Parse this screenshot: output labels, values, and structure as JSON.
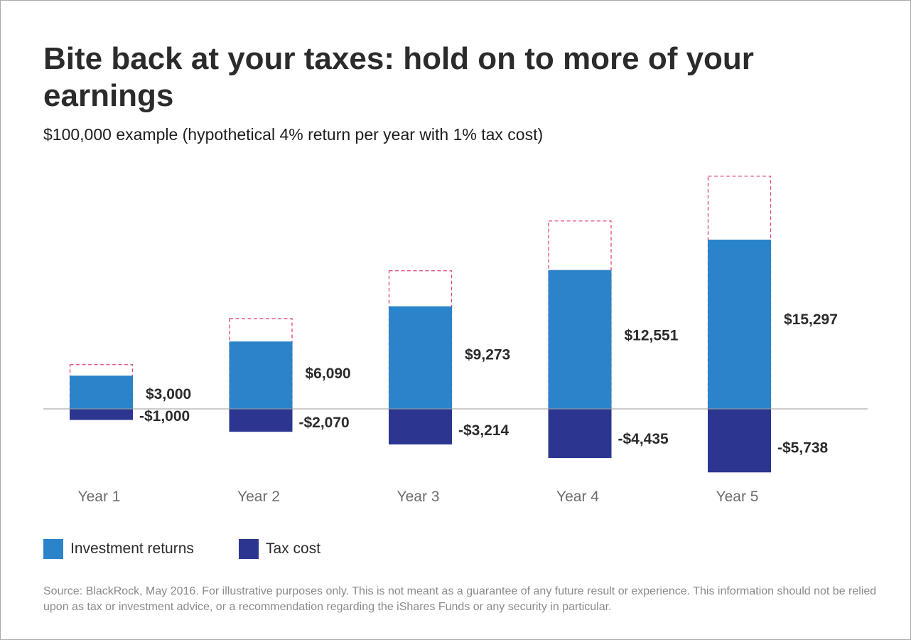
{
  "title": "Bite back at your taxes: hold on to more of your earnings",
  "subtitle": "$100,000 example (hypothetical 4% return per year with 1% tax cost)",
  "chart_data": {
    "type": "bar",
    "categories": [
      "Year 1",
      "Year 2",
      "Year 3",
      "Year 4",
      "Year 5"
    ],
    "series": [
      {
        "name": "Investment returns",
        "values": [
          3000,
          6090,
          9273,
          12551,
          15297
        ],
        "labels": [
          "$3,000",
          "$6,090",
          "$9,273",
          "$12,551",
          "$15,297"
        ],
        "color": "#2b84c9"
      },
      {
        "name": "Tax cost",
        "values": [
          -1000,
          -2070,
          -3214,
          -4435,
          -5738
        ],
        "labels": [
          "-$1,000",
          "-$2,070",
          "-$3,214",
          "-$4,435",
          "-$5,738"
        ],
        "color": "#2c3690"
      }
    ],
    "dashed_outline_color": "#e0457b",
    "legend_position": "bottom-left",
    "grid": false,
    "baseline_color": "#9a9a9a"
  },
  "legend": [
    {
      "label": "Investment returns",
      "color": "#2b84c9"
    },
    {
      "label": "Tax cost",
      "color": "#2c3690"
    }
  ],
  "source": "Source: BlackRock, May 2016. For illustrative purposes only. This is not meant as a guarantee of any future result or experience. This information should not be relied upon as tax or investment advice, or a recommendation regarding the iShares Funds or any security in particular."
}
